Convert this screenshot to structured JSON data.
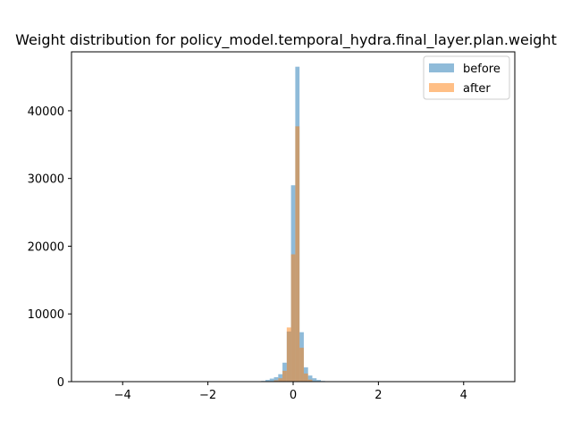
{
  "chart_data": {
    "type": "bar",
    "title": "Weight distribution for policy_model.temporal_hydra.final_layer.plan.weight",
    "xlabel": "",
    "ylabel": "",
    "xlim": [
      -5.2,
      5.2
    ],
    "ylim": [
      0,
      48700
    ],
    "x_ticks": [
      -4,
      -2,
      0,
      2,
      4
    ],
    "y_ticks": [
      0,
      10000,
      20000,
      30000,
      40000
    ],
    "x_tick_labels": [
      "−4",
      "−2",
      "0",
      "2",
      "4"
    ],
    "y_tick_labels": [
      "0",
      "10000",
      "20000",
      "30000",
      "40000"
    ],
    "grid": false,
    "legend_position": "top-right",
    "bin_width": 0.1,
    "series": [
      {
        "name": "before",
        "color": "#1f77b4",
        "opacity": 0.5,
        "bins": [
          {
            "x": -0.7,
            "y": 100
          },
          {
            "x": -0.6,
            "y": 250
          },
          {
            "x": -0.5,
            "y": 450
          },
          {
            "x": -0.4,
            "y": 650
          },
          {
            "x": -0.3,
            "y": 1100
          },
          {
            "x": -0.2,
            "y": 2800
          },
          {
            "x": -0.1,
            "y": 7400
          },
          {
            "x": 0.0,
            "y": 29000
          },
          {
            "x": 0.1,
            "y": 46500
          },
          {
            "x": 0.2,
            "y": 7300
          },
          {
            "x": 0.3,
            "y": 2100
          },
          {
            "x": 0.4,
            "y": 900
          },
          {
            "x": 0.5,
            "y": 500
          },
          {
            "x": 0.6,
            "y": 250
          },
          {
            "x": 0.7,
            "y": 100
          }
        ]
      },
      {
        "name": "after",
        "color": "#ff7f0e",
        "opacity": 0.5,
        "bins": [
          {
            "x": -0.4,
            "y": 200
          },
          {
            "x": -0.3,
            "y": 500
          },
          {
            "x": -0.2,
            "y": 1600
          },
          {
            "x": -0.1,
            "y": 8000
          },
          {
            "x": 0.0,
            "y": 18800
          },
          {
            "x": 0.1,
            "y": 37700
          },
          {
            "x": 0.2,
            "y": 5000
          },
          {
            "x": 0.3,
            "y": 1200
          },
          {
            "x": 0.4,
            "y": 300
          }
        ]
      }
    ]
  }
}
